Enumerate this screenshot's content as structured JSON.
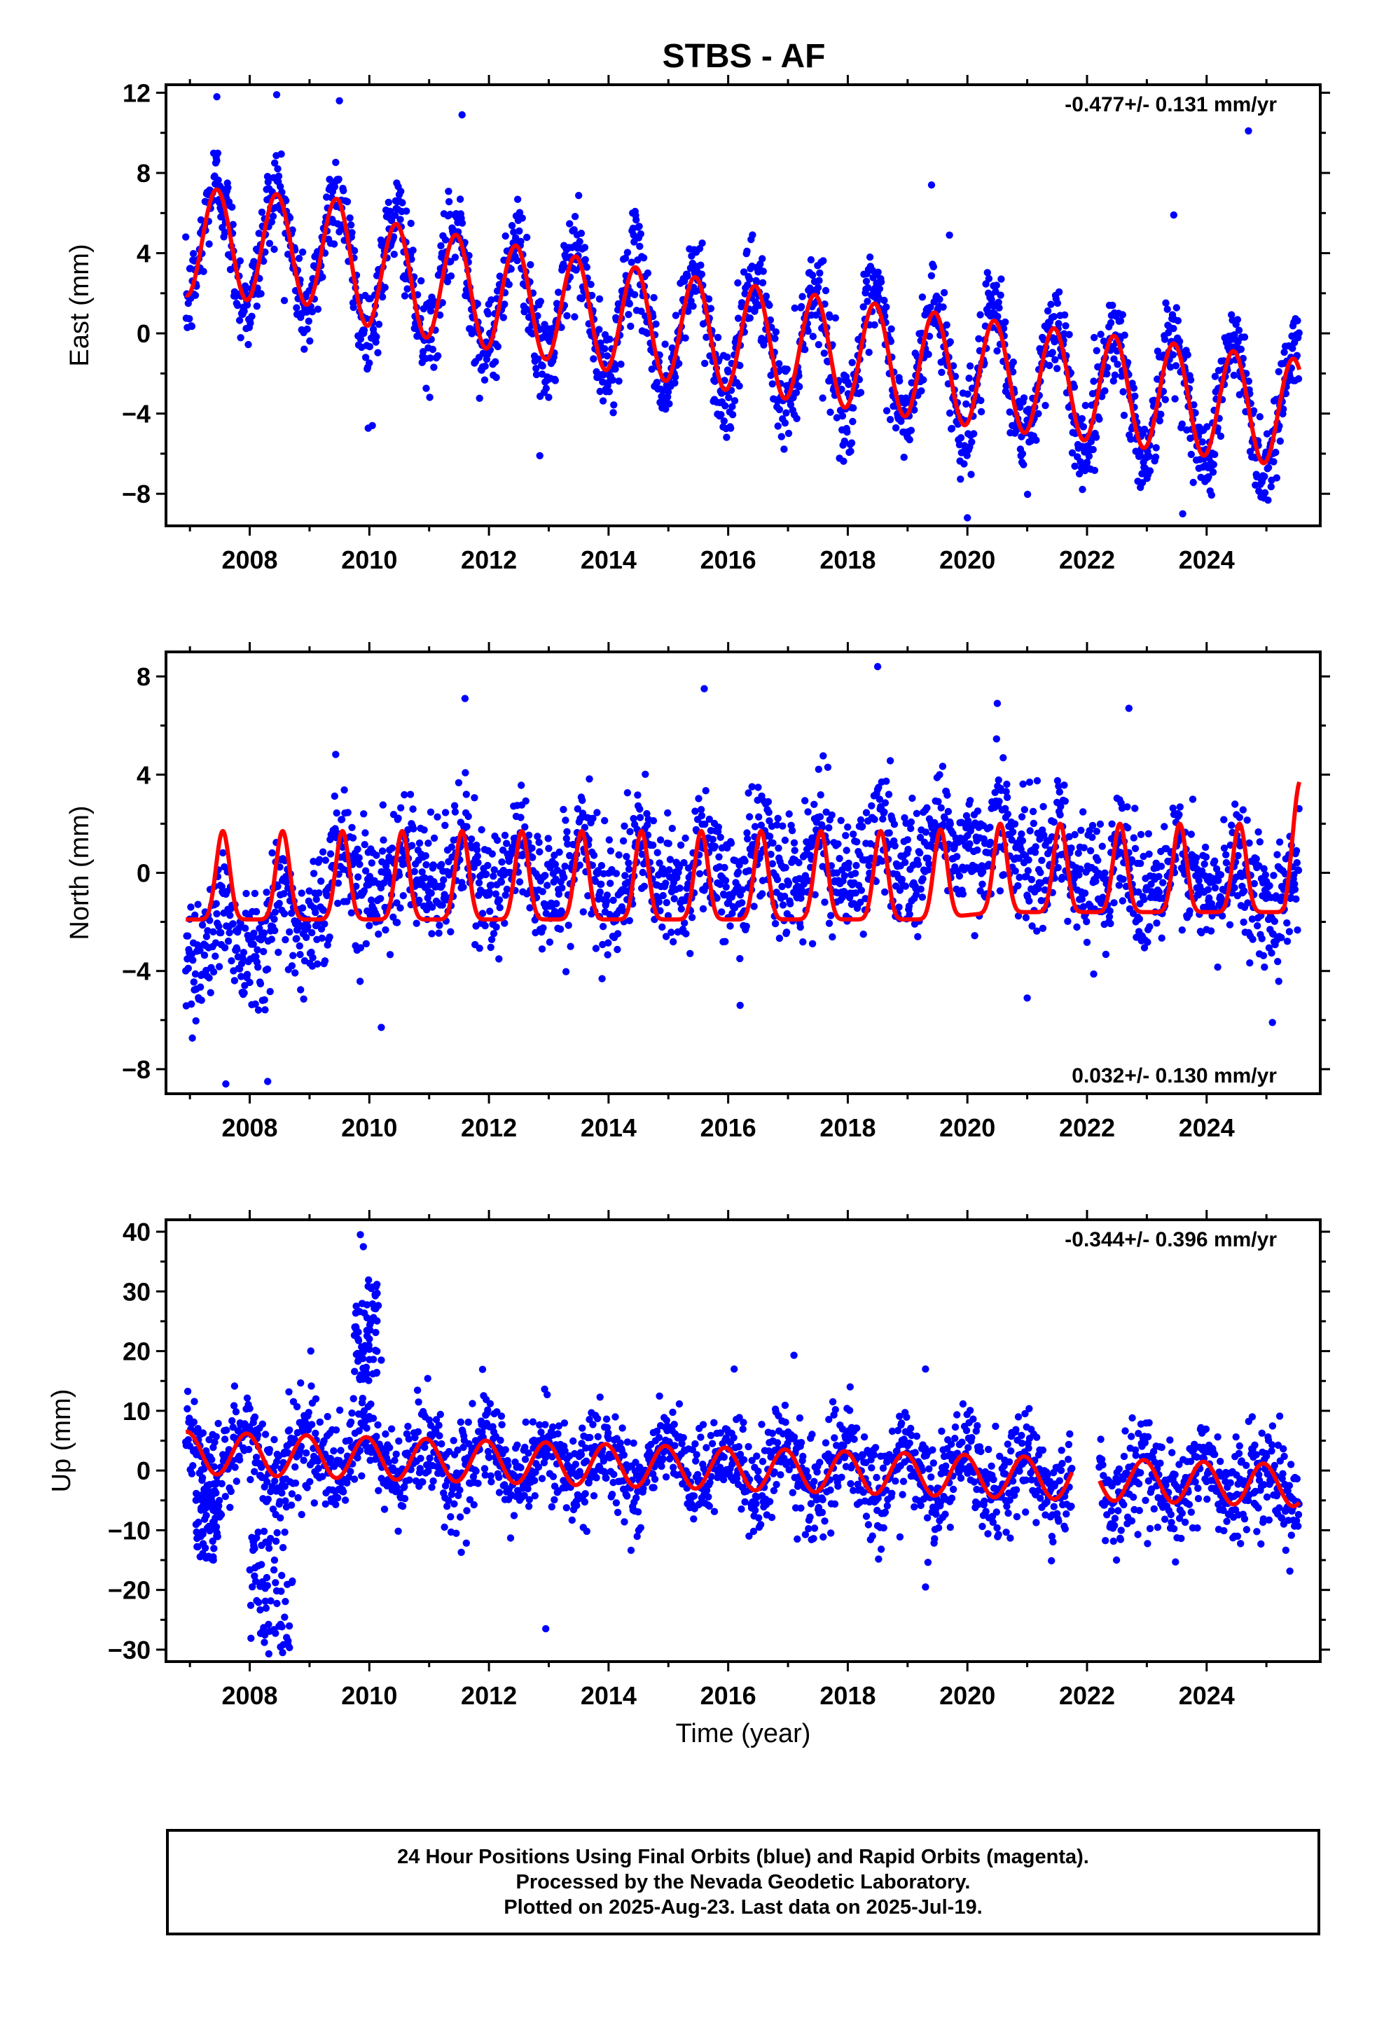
{
  "figure": {
    "title": "STBS - AF",
    "xlabel": "Time (year)"
  },
  "footer": {
    "line1": "24 Hour Positions Using Final Orbits (blue) and Rapid Orbits (magenta).",
    "line2": "Processed by the Nevada Geodetic Laboratory.",
    "line3": "Plotted on 2025-Aug-23. Last data on 2025-Jul-19."
  },
  "colors": {
    "points": "#0000ff",
    "fit": "#ff0000",
    "frame": "#000000"
  },
  "chart_data": [
    {
      "type": "scatter",
      "title": "STBS - AF",
      "ylabel": "East (mm)",
      "xlim": [
        2006.6,
        2025.9
      ],
      "ylim": [
        -9.6,
        12.4
      ],
      "x_ticks": [
        2008,
        2010,
        2012,
        2014,
        2016,
        2018,
        2020,
        2022,
        2024
      ],
      "y_ticks": [
        -8,
        -4,
        0,
        4,
        8,
        12
      ],
      "annotation": "-0.477+/- 0.131 mm/yr",
      "annotation_position": "top-right",
      "data_start": 2006.93,
      "data_end": 2025.55,
      "series": [
        {
          "kind": "points",
          "color": "#0000ff",
          "trend": [
            [
              2006.9,
              4.6
            ],
            [
              2009.5,
              4.0
            ],
            [
              2010.0,
              3.0
            ],
            [
              2015.0,
              0.3
            ],
            [
              2020.0,
              -1.9
            ],
            [
              2025.55,
              -4.0
            ]
          ],
          "seasonal": {
            "amplitude": 3.0,
            "peak_phase": 0.45,
            "scatter_sd": 1.15
          },
          "outliers": [
            [
              2007.45,
              11.8
            ],
            [
              2008.45,
              11.9
            ],
            [
              2009.5,
              11.6
            ],
            [
              2011.55,
              10.9
            ],
            [
              2019.4,
              7.4
            ],
            [
              2019.7,
              4.9
            ],
            [
              2023.45,
              5.9
            ],
            [
              2024.7,
              10.1
            ],
            [
              2020.0,
              -9.2
            ],
            [
              2023.6,
              -9.0
            ],
            [
              2010.05,
              -4.6
            ],
            [
              2012.85,
              -6.1
            ]
          ]
        },
        {
          "kind": "fit",
          "color": "#ff0000",
          "trend": [
            [
              2006.9,
              4.6
            ],
            [
              2009.5,
              4.0
            ],
            [
              2010.0,
              3.0
            ],
            [
              2015.0,
              0.3
            ],
            [
              2020.0,
              -1.9
            ],
            [
              2025.55,
              -4.0
            ]
          ],
          "seasonal": {
            "amplitude": 2.7,
            "peak_phase": 0.45
          }
        }
      ]
    },
    {
      "type": "scatter",
      "ylabel": "North (mm)",
      "xlim": [
        2006.6,
        2025.9
      ],
      "ylim": [
        -9.0,
        9.0
      ],
      "x_ticks": [
        2008,
        2010,
        2012,
        2014,
        2016,
        2018,
        2020,
        2022,
        2024
      ],
      "y_ticks": [
        -8,
        -4,
        0,
        4,
        8
      ],
      "annotation": "0.032+/- 0.130 mm/yr",
      "annotation_position": "bottom-right",
      "data_start": 2006.93,
      "data_end": 2025.55,
      "series": [
        {
          "kind": "points",
          "color": "#0000ff",
          "trend": [
            [
              2006.9,
              -3.0
            ],
            [
              2009.0,
              -1.8
            ],
            [
              2009.4,
              0.0
            ],
            [
              2015.0,
              -0.2
            ],
            [
              2018.5,
              0.5
            ],
            [
              2020.3,
              1.3
            ],
            [
              2022.0,
              0.0
            ],
            [
              2025.55,
              -0.8
            ]
          ],
          "seasonal": {
            "amplitude": 1.9,
            "peak_phase": 0.55,
            "sharpness": 3,
            "scatter_sd": 1.25
          },
          "outliers": [
            [
              2007.6,
              -8.6
            ],
            [
              2008.3,
              -8.5
            ],
            [
              2011.6,
              7.1
            ],
            [
              2015.6,
              7.5
            ],
            [
              2018.5,
              8.4
            ],
            [
              2020.5,
              6.9
            ],
            [
              2022.7,
              6.7
            ],
            [
              2021.0,
              -5.1
            ],
            [
              2016.2,
              -5.4
            ],
            [
              2025.1,
              -6.1
            ],
            [
              2010.2,
              -6.3
            ]
          ]
        },
        {
          "kind": "fit",
          "color": "#ff0000",
          "trend": [
            [
              2006.9,
              -1.0
            ],
            [
              2019.3,
              -1.0
            ],
            [
              2020.5,
              -0.7
            ],
            [
              2025.3,
              -0.7
            ],
            [
              2025.55,
              1.0
            ]
          ],
          "seasonal": {
            "amplitude": 3.6,
            "peak_phase": 0.55,
            "sharpness": 4
          }
        }
      ]
    },
    {
      "type": "scatter",
      "ylabel": "Up (mm)",
      "xlim": [
        2006.6,
        2025.9
      ],
      "ylim": [
        -32,
        42
      ],
      "x_ticks": [
        2008,
        2010,
        2012,
        2014,
        2016,
        2018,
        2020,
        2022,
        2024
      ],
      "y_ticks": [
        -30,
        -20,
        -10,
        0,
        10,
        20,
        30,
        40
      ],
      "annotation": "-0.344+/- 0.396 mm/yr",
      "annotation_position": "top-right",
      "data_start": 2006.93,
      "data_end": 2025.55,
      "gaps": [
        [
          2021.75,
          2022.2
        ]
      ],
      "series": [
        {
          "kind": "points",
          "color": "#0000ff",
          "trend": [
            [
              2006.9,
              3.0
            ],
            [
              2025.55,
              -2.5
            ]
          ],
          "seasonal": {
            "amplitude": 3.5,
            "peak_phase": 0.95,
            "scatter_sd": 4.0
          },
          "clusters": [
            {
              "x": [
                2008.0,
                2008.75
              ],
              "y": [
                -31,
                -10
              ]
            },
            {
              "x": [
                2009.75,
                2010.15
              ],
              "y": [
                15,
                32
              ]
            },
            {
              "x": [
                2007.1,
                2007.5
              ],
              "y": [
                -15,
                -3
              ]
            }
          ],
          "outliers": [
            [
              2009.85,
              39.5
            ],
            [
              2009.9,
              37.5
            ],
            [
              2010.2,
              18.5
            ],
            [
              2012.95,
              -26.5
            ],
            [
              2016.1,
              17.0
            ],
            [
              2017.1,
              19.3
            ],
            [
              2019.3,
              17.0
            ],
            [
              2019.3,
              -19.5
            ],
            [
              2008.55,
              -30.5
            ]
          ]
        },
        {
          "kind": "fit",
          "color": "#ff0000",
          "trend": [
            [
              2006.9,
              3.0
            ],
            [
              2025.55,
              -2.5
            ]
          ],
          "seasonal": {
            "amplitude": 3.5,
            "peak_phase": 0.95
          }
        }
      ]
    }
  ]
}
